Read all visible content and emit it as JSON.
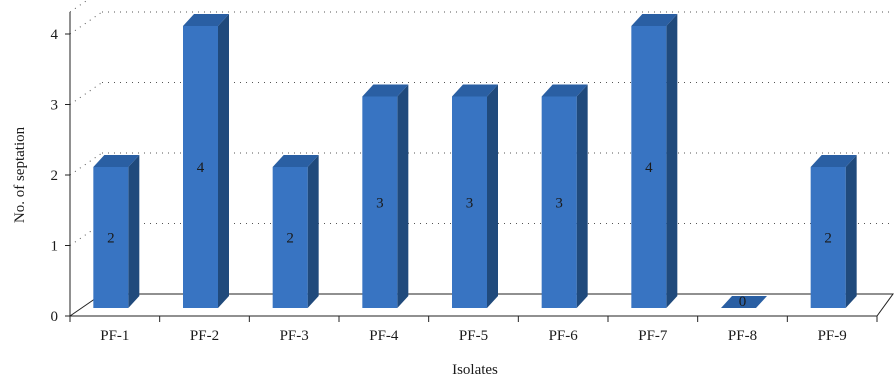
{
  "chart_data": {
    "type": "bar",
    "categories": [
      "PF-1",
      "PF-2",
      "PF-3",
      "PF-4",
      "PF-5",
      "PF-6",
      "PF-7",
      "PF-8",
      "PF-9"
    ],
    "values": [
      2,
      4,
      2,
      3,
      3,
      3,
      4,
      0,
      2
    ],
    "data_labels": [
      "2",
      "4",
      "2",
      "3",
      "3",
      "3",
      "4",
      "0",
      "2"
    ],
    "xlabel": "Isolates",
    "ylabel": "No. of septation",
    "ylim": [
      0,
      4
    ],
    "yticks": [
      "0",
      "1",
      "2",
      "3",
      "4"
    ],
    "grid": "dotted horizontal",
    "style": "3d",
    "colors": {
      "bar_front": "#3874c2",
      "bar_side": "#204a7c",
      "bar_top": "#2a5fa3"
    }
  }
}
